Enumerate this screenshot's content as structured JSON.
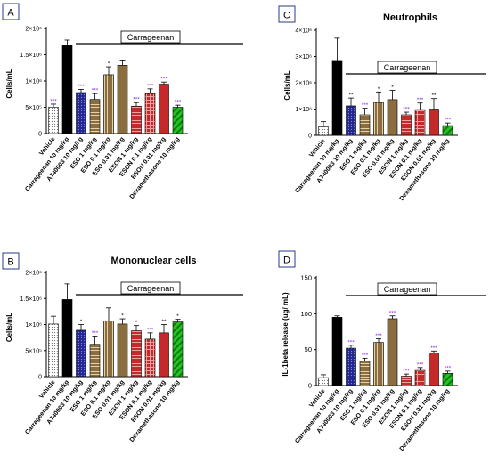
{
  "chart_data": [
    {
      "panel_label": "A",
      "type": "bar",
      "title": "",
      "ylabel": "Cells/mL",
      "ylim": [
        0,
        2000000
      ],
      "yticks": [
        "0",
        "5×10⁵",
        "1×10⁶",
        "1.5×10⁶",
        "2×10⁶"
      ],
      "tick_values": [
        0,
        500000,
        1000000,
        1500000,
        2000000
      ],
      "group_label": "Carrageenan",
      "categories": [
        "Vehicle",
        "Carrageenan 10 mg/kg",
        "A740003 10 mg/kg",
        "ESO 1 mg/kg",
        "ESO 0.1 mg/kg",
        "ESO 0.01 mg/kg",
        "ESON 1 mg/kg",
        "ESON 0.1 mg/kg",
        "ESON 0.01 mg/kg",
        "Dexamethasone 10 mg/kg"
      ],
      "values": [
        500000,
        1680000,
        780000,
        650000,
        1120000,
        1300000,
        520000,
        760000,
        940000,
        500000
      ],
      "errors": [
        60000,
        100000,
        60000,
        110000,
        150000,
        100000,
        70000,
        90000,
        40000,
        40000
      ],
      "significance": [
        "***",
        "",
        "***",
        "***",
        "*",
        "",
        "***",
        "***",
        "***",
        "***"
      ]
    },
    {
      "panel_label": "C",
      "type": "bar",
      "title": "Neutrophils",
      "ylabel": "Cells/mL",
      "ylim": [
        0,
        4000000
      ],
      "yticks": [
        "0",
        "1×10⁶",
        "2×10⁶",
        "3×10⁶",
        "4×10⁶"
      ],
      "tick_values": [
        0,
        1000000,
        2000000,
        3000000,
        4000000
      ],
      "group_label": "Carrageenan",
      "categories": [
        "Vehicle",
        "Carrageenan 10 mg/kg",
        "A740003 10 mg/kg",
        "ESO 1 mg/kg",
        "ESO 0.1 mg/kg",
        "ESO 0.01 mg/kg",
        "ESON 1 mg/kg",
        "ESON 0.1 mg/kg",
        "ESON 0.01 mg/kg",
        "Dexamethasone 10 mg/kg"
      ],
      "values": [
        320000,
        2850000,
        1120000,
        780000,
        1250000,
        1360000,
        780000,
        980000,
        1000000,
        370000
      ],
      "errors": [
        200000,
        850000,
        300000,
        250000,
        400000,
        350000,
        100000,
        250000,
        400000,
        100000
      ],
      "significance": [
        "",
        "",
        "**",
        "***",
        "*",
        "*",
        "***",
        "***",
        "**",
        "***"
      ]
    },
    {
      "panel_label": "B",
      "type": "bar",
      "title": "Mononuclear cells",
      "ylabel": "Cells/mL",
      "ylim": [
        0,
        2000000
      ],
      "yticks": [
        "0",
        "5×10⁵",
        "1×10⁶",
        "1.5×10⁶",
        "2×10⁶"
      ],
      "tick_values": [
        0,
        500000,
        1000000,
        1500000,
        2000000
      ],
      "group_label": "Carrageenan",
      "categories": [
        "Vehicle",
        "Carrageenan 10 mg/kg",
        "A740003 10 mg/kg",
        "ESO 1 mg/kg",
        "ESO 0.1 mg/kg",
        "ESO 0.01 mg/kg",
        "ESON 1 mg/kg",
        "ESON 0.1 mg/kg",
        "ESON 0.01 mg/kg",
        "Dexamethasone 10 mg/kg"
      ],
      "values": [
        1010000,
        1480000,
        890000,
        620000,
        1070000,
        1010000,
        880000,
        720000,
        840000,
        1050000
      ],
      "errors": [
        150000,
        300000,
        110000,
        160000,
        250000,
        100000,
        100000,
        120000,
        160000,
        50000
      ],
      "significance": [
        "",
        "",
        "*",
        "***",
        "",
        "*",
        "*",
        "***",
        "**",
        "*"
      ]
    },
    {
      "panel_label": "D",
      "type": "bar",
      "title": "",
      "ylabel": "IL-1beta release (ug/ mL)",
      "ylim": [
        0,
        150
      ],
      "yticks": [
        "0",
        "50",
        "100",
        "150"
      ],
      "tick_values": [
        0,
        50,
        100,
        150
      ],
      "group_label": "Carrageenan",
      "categories": [
        "Vehicle",
        "Carrageenan 10 mg/kg",
        "A740003 10 mg/kg",
        "ESO 1 mg/kg",
        "ESO 0.1 mg/kg",
        "ESO 0.01 mg/kg",
        "ESON 1 mg/kg",
        "ESON 0.1 mg/kg",
        "ESON 0.01 mg/kg",
        "Dexamethasone 10 mg/kg"
      ],
      "values": [
        11,
        95,
        52,
        34,
        60,
        93,
        13,
        21,
        45,
        17
      ],
      "errors": [
        4,
        2,
        4,
        4,
        5,
        4,
        3,
        4,
        3,
        3
      ],
      "significance": [
        "",
        "",
        "***",
        "***",
        "***",
        "***",
        "***",
        "***",
        "***",
        "***"
      ]
    }
  ],
  "styles": {
    "fills": [
      "#ffffff",
      "#000000",
      "#22268f",
      "#8b6d3f",
      "#8b6d3f",
      "#8b6d3f",
      "#c42a2a",
      "#c42a2a",
      "#c42a2a",
      "#22c322"
    ],
    "patterns": [
      "dots",
      "solid",
      "dots",
      "hlines",
      "vlines",
      "solid",
      "hlines",
      "grid",
      "solid",
      "diag"
    ],
    "significance_colors": {
      "*": "#000000",
      "**": "#000000",
      "***": "#8a2be2"
    }
  }
}
